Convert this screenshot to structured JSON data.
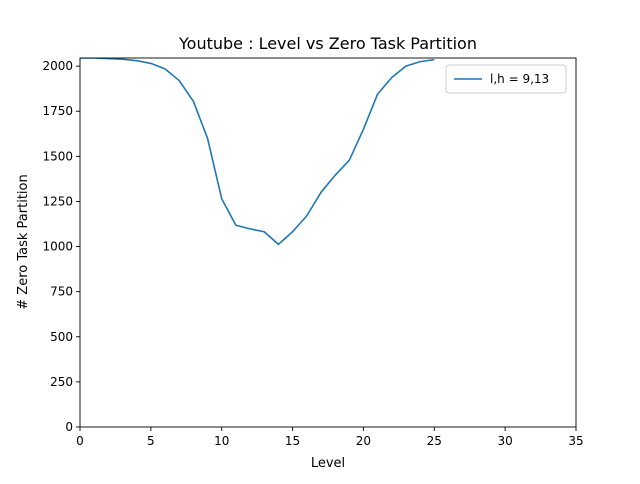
{
  "chart_data": {
    "type": "line",
    "title": "Youtube : Level vs Zero Task Partition",
    "xlabel": "Level",
    "ylabel": "# Zero Task Partition",
    "xlim": [
      0,
      35
    ],
    "ylim": [
      0,
      2045
    ],
    "xticks": [
      0,
      5,
      10,
      15,
      20,
      25,
      30,
      35
    ],
    "yticks": [
      0,
      250,
      500,
      750,
      1000,
      1250,
      1500,
      1750,
      2000
    ],
    "grid": false,
    "legend_position": "top-right",
    "series": [
      {
        "name": "l,h = 9,13",
        "color": "#1f77b4",
        "x": [
          0,
          1,
          2,
          3,
          4,
          5,
          6,
          7,
          8,
          9,
          10,
          11,
          12,
          13,
          14,
          15,
          16,
          17,
          18,
          19,
          20,
          21,
          22,
          23,
          24,
          25
        ],
        "y": [
          2045,
          2045,
          2042,
          2038,
          2030,
          2015,
          1985,
          1920,
          1805,
          1600,
          1265,
          1118,
          1098,
          1082,
          1012,
          1082,
          1170,
          1300,
          1395,
          1478,
          1650,
          1845,
          1937,
          2000,
          2025,
          2036
        ]
      }
    ]
  }
}
